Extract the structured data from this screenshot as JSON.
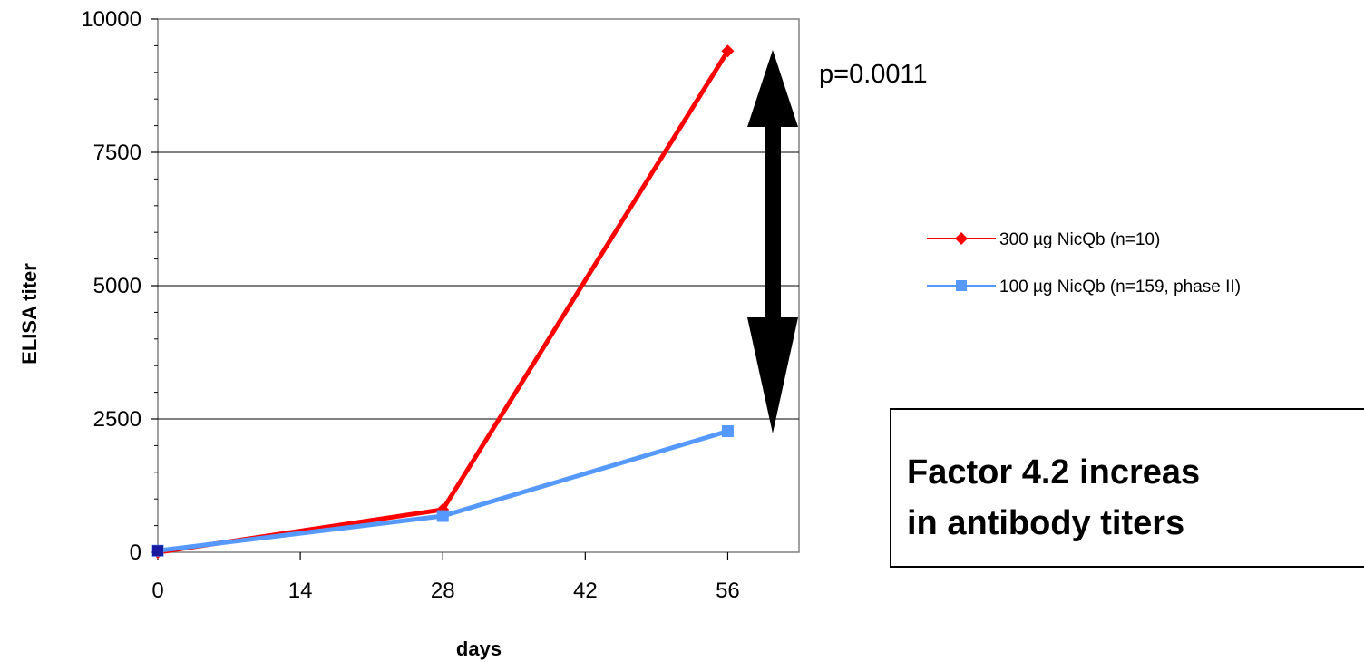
{
  "chart_data": {
    "type": "line",
    "x": [
      0,
      28,
      56
    ],
    "xticks": [
      0,
      14,
      28,
      42,
      56
    ],
    "xlim": [
      0,
      63
    ],
    "yticks": [
      0,
      2500,
      5000,
      7500,
      10000
    ],
    "ylim": [
      0,
      10000
    ],
    "xlabel": "days",
    "ylabel": "ELISA titer",
    "grid": true,
    "legend_position": "right",
    "series": [
      {
        "name": "300 µg NicQb (n=10)",
        "color": "#ff0000",
        "marker": "diamond",
        "values": [
          0,
          800,
          9400
        ]
      },
      {
        "name": "100 µg NicQb (n=159, phase II)",
        "color": "#5599ff",
        "marker": "square",
        "values": [
          30,
          680,
          2270
        ]
      }
    ],
    "annotation": "p=0.0011",
    "callout": {
      "line1": "Factor 4.2 increas",
      "line2": "in antibody titers"
    }
  }
}
